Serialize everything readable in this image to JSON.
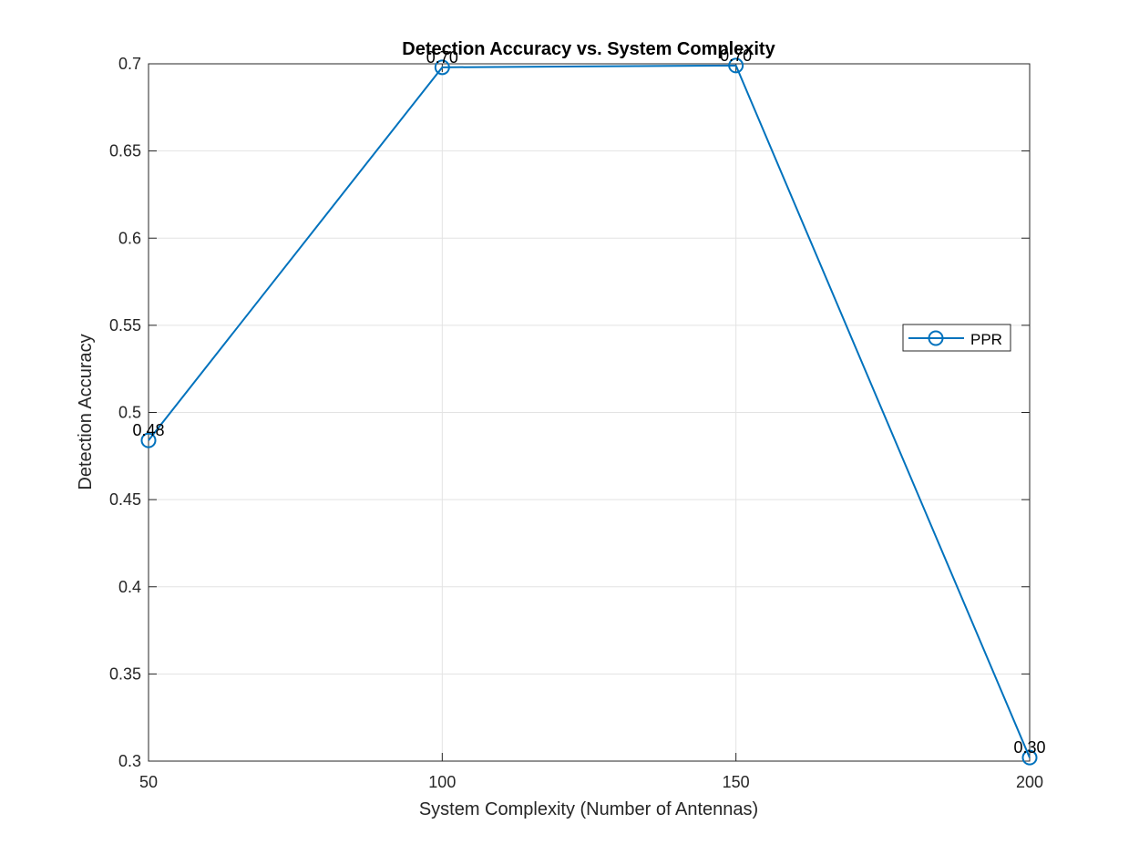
{
  "chart_data": {
    "type": "line",
    "title": "Detection Accuracy vs. System Complexity",
    "xlabel": "System Complexity (Number of Antennas)",
    "ylabel": "Detection Accuracy",
    "xlim": [
      50,
      200
    ],
    "ylim": [
      0.3,
      0.7
    ],
    "xticks": [
      50,
      100,
      150,
      200
    ],
    "xtick_labels": [
      "50",
      "100",
      "150",
      "200"
    ],
    "yticks": [
      0.3,
      0.35,
      0.4,
      0.45,
      0.5,
      0.55,
      0.6,
      0.65,
      0.7
    ],
    "ytick_labels": [
      "0.3",
      "0.35",
      "0.4",
      "0.45",
      "0.5",
      "0.55",
      "0.6",
      "0.65",
      "0.7"
    ],
    "grid": true,
    "legend_position": "right",
    "series": [
      {
        "name": "PPR",
        "color": "#0072BD",
        "marker": "circle",
        "x": [
          50,
          100,
          150,
          200
        ],
        "y": [
          0.484,
          0.698,
          0.699,
          0.302
        ],
        "point_labels": [
          "0.48",
          "0.70",
          "0.70",
          "0.30"
        ]
      }
    ]
  }
}
